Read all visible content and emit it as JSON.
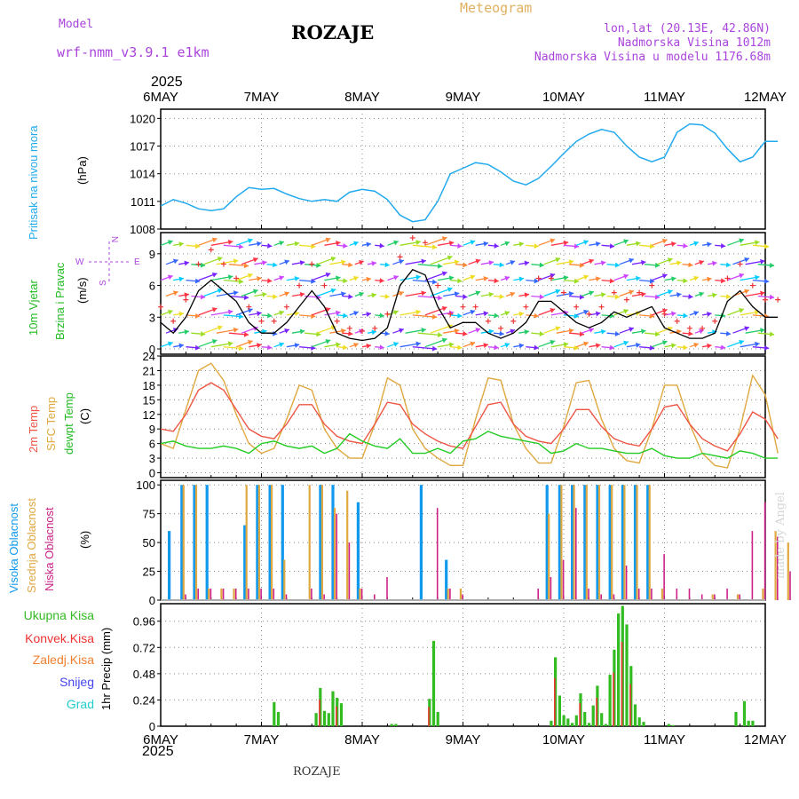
{
  "header": {
    "model_label": "Model",
    "model_name": "wrf-nmm_v3.9.1 e1km",
    "station": "ROZAJE",
    "product": "Meteogram",
    "lonlat": "lon,lat (20.13E, 42.86N)",
    "elevation": "Nadmorska Visina 1012m",
    "model_elevation": "Nadmorska Visina u modelu 1176.68m",
    "credit": "made by Angel",
    "footer_station": "ROZAJE",
    "year": "2025"
  },
  "colors": {
    "pressure": "#22aaee",
    "wind_speed": "#000000",
    "wind_gust_marks": "#ee3333",
    "temp_2m": "#ee5544",
    "temp_sfc": "#e0a840",
    "temp_dew": "#22cc22",
    "cloud_high": "#1199ee",
    "cloud_mid": "#e0a840",
    "cloud_low": "#cc2288",
    "precip_total": "#33bb22",
    "precip_conv": "#ee3333",
    "grid": "#888888"
  },
  "chart_data": [
    {
      "type": "line",
      "panel": "pressure",
      "ylabel": [
        "Pritisak na nivou mora",
        "(hPa)"
      ],
      "yticks": [
        1008,
        1011,
        1014,
        1017,
        1020
      ],
      "ylim": [
        1008,
        1021
      ],
      "x_start": "2025-05-06T00",
      "x_step_hours": 3,
      "series": [
        {
          "name": "Pritisak na nivou mora",
          "values": [
            1010.5,
            1011.2,
            1010.8,
            1010.2,
            1010,
            1010.2,
            1011.5,
            1012.5,
            1012.3,
            1012.4,
            1011.8,
            1011.3,
            1011,
            1011.2,
            1011,
            1012,
            1012.3,
            1012.1,
            1011.2,
            1009.5,
            1008.8,
            1009,
            1011,
            1014,
            1014.6,
            1015.2,
            1015,
            1014.2,
            1013.2,
            1012.8,
            1013.5,
            1014.8,
            1016.2,
            1017.5,
            1018.3,
            1018.8,
            1018.5,
            1017,
            1015.8,
            1015.3,
            1015.8,
            1018.5,
            1019.4,
            1019.3,
            1018.4,
            1016.7,
            1015.3,
            1015.8,
            1017.5,
            1017.5
          ]
        }
      ]
    },
    {
      "type": "line",
      "panel": "wind",
      "ylabel": [
        "10m Vjetar",
        "Brzina i Pravac",
        "(m/s)"
      ],
      "yticks": [
        0,
        3,
        6,
        9
      ],
      "ylim": [
        -0.5,
        11
      ],
      "x_start": "2025-05-06T00",
      "x_step_hours": 3,
      "series": [
        {
          "name": "10m Vjetar",
          "values": [
            2.5,
            1.5,
            3,
            5.5,
            6.5,
            5.5,
            4.5,
            2.5,
            1.5,
            1.5,
            2.5,
            4,
            5.5,
            4,
            1.5,
            1,
            0.8,
            1,
            2,
            6,
            7.5,
            7,
            4,
            2,
            2.5,
            2.5,
            1.5,
            1,
            1.5,
            2.5,
            4.5,
            4.5,
            3.5,
            2.5,
            2,
            2.5,
            3.5,
            3,
            3.5,
            4,
            2,
            1.5,
            1,
            1,
            1.5,
            4.5,
            5.5,
            4,
            3,
            3
          ]
        }
      ],
      "direction_legend": [
        "N",
        "E",
        "S",
        "W"
      ]
    },
    {
      "type": "line",
      "panel": "temperature",
      "ylabel": [
        "2m Temp",
        "SFC Temp",
        "dewpt Temp",
        "(C)"
      ],
      "yticks": [
        0,
        3,
        6,
        9,
        12,
        15,
        18,
        21,
        24
      ],
      "ylim": [
        -1,
        24
      ],
      "x_start": "2025-05-06T00",
      "x_step_hours": 3,
      "series": [
        {
          "name": "2m Temp",
          "values": [
            9,
            8.5,
            12,
            17,
            18.5,
            17,
            13,
            9,
            7.5,
            7,
            10,
            14,
            14,
            10,
            7.5,
            6.5,
            6,
            10,
            14.5,
            14,
            10,
            8,
            6.5,
            5.5,
            5,
            9.5,
            14,
            14.5,
            10,
            7.5,
            6.5,
            6,
            9,
            13,
            13,
            9.5,
            7,
            6,
            5.5,
            9,
            13.5,
            14,
            10,
            7,
            5.5,
            4.5,
            8,
            12.5,
            11,
            7
          ]
        },
        {
          "name": "SFC Temp",
          "values": [
            6,
            5,
            13,
            21,
            22.5,
            19,
            12,
            6,
            4,
            5,
            11,
            18,
            17,
            9,
            5,
            3,
            3,
            10,
            19.5,
            18,
            9,
            5,
            3,
            1.5,
            1.5,
            11,
            19.5,
            19,
            10,
            5,
            2,
            2,
            9.5,
            18.5,
            19,
            11,
            5,
            2.5,
            2,
            9,
            18,
            18,
            10,
            4,
            1.5,
            1,
            9,
            20,
            16,
            4
          ]
        },
        {
          "name": "dewpt Temp",
          "values": [
            6,
            6.5,
            5.5,
            5,
            5,
            5.5,
            5,
            4,
            6,
            6.5,
            5.5,
            5,
            5.5,
            4,
            5,
            8,
            6.5,
            5.5,
            5,
            7,
            4,
            4,
            5,
            4,
            6.5,
            7,
            8.5,
            7.5,
            7,
            6.5,
            6,
            4,
            4.5,
            6,
            5,
            5,
            4.5,
            4,
            4,
            5,
            3.5,
            3,
            3,
            4,
            3.5,
            3,
            4.5,
            4,
            3,
            3
          ]
        }
      ]
    },
    {
      "type": "bar",
      "panel": "clouds",
      "ylabel": [
        "Visoka Oblacnost",
        "Srednja Oblacnost",
        "Niska Oblacnost",
        "(%)"
      ],
      "yticks": [
        0,
        25,
        50,
        75,
        100
      ],
      "ylim": [
        0,
        104
      ],
      "x_start": "2025-05-06T00",
      "x_step_hours": 3,
      "series": [
        {
          "name": "Visoka Oblacnost",
          "values": [
            60,
            100,
            100,
            100,
            0,
            0,
            65,
            100,
            100,
            100,
            0,
            0,
            100,
            100,
            0,
            85,
            0,
            0,
            0,
            0,
            100,
            0,
            35,
            0,
            0,
            0,
            0,
            0,
            0,
            0,
            100,
            100,
            100,
            100,
            100,
            100,
            100,
            100,
            100,
            0,
            0,
            0,
            0,
            0,
            0,
            0,
            0,
            0,
            0,
            0
          ]
        },
        {
          "name": "Srednja Oblacnost",
          "values": [
            0,
            100,
            100,
            10,
            10,
            10,
            100,
            100,
            100,
            35,
            0,
            100,
            100,
            80,
            95,
            10,
            0,
            0,
            0,
            0,
            0,
            0,
            10,
            10,
            0,
            0,
            0,
            0,
            0,
            0,
            75,
            100,
            100,
            100,
            100,
            100,
            100,
            100,
            100,
            10,
            0,
            0,
            0,
            5,
            0,
            5,
            0,
            10,
            60,
            50
          ]
        },
        {
          "name": "Niska Oblacnost",
          "values": [
            0,
            5,
            10,
            10,
            10,
            10,
            10,
            10,
            10,
            5,
            0,
            10,
            5,
            75,
            50,
            10,
            5,
            20,
            0,
            0,
            0,
            80,
            10,
            5,
            0,
            0,
            0,
            0,
            0,
            10,
            20,
            35,
            80,
            10,
            5,
            5,
            30,
            10,
            10,
            40,
            10,
            10,
            5,
            5,
            10,
            5,
            60,
            85,
            55,
            25
          ]
        }
      ]
    },
    {
      "type": "bar",
      "panel": "precipitation",
      "ylabel": [
        "1hr Precip (mm)"
      ],
      "legend": [
        "Ukupna Kisa",
        "Konvek.Kisa",
        "Zaledj.Kisa",
        "Snijeg",
        "Grad"
      ],
      "yticks": [
        0,
        0.24,
        0.48,
        0.72,
        0.96
      ],
      "ylim": [
        0,
        1.12
      ],
      "x_start": "2025-05-06T00",
      "x_step_hours": 1,
      "sparse_points": [
        {
          "h": 27,
          "v": 0.22
        },
        {
          "h": 28,
          "v": 0.13
        },
        {
          "h": 37,
          "v": 0.12
        },
        {
          "h": 38,
          "v": 0.35
        },
        {
          "h": 39,
          "v": 0.14
        },
        {
          "h": 40,
          "v": 0.12
        },
        {
          "h": 41,
          "v": 0.32
        },
        {
          "h": 42,
          "v": 0.26
        },
        {
          "h": 43,
          "v": 0.21
        },
        {
          "h": 55,
          "v": 0.02
        },
        {
          "h": 56,
          "v": 0.02
        },
        {
          "h": 64,
          "v": 0.25
        },
        {
          "h": 65,
          "v": 0.78
        },
        {
          "h": 66,
          "v": 0.13
        },
        {
          "h": 93,
          "v": 0.05
        },
        {
          "h": 94,
          "v": 0.63
        },
        {
          "h": 95,
          "v": 0.28
        },
        {
          "h": 96,
          "v": 0.1
        },
        {
          "h": 97,
          "v": 0.07
        },
        {
          "h": 98,
          "v": 0.03
        },
        {
          "h": 99,
          "v": 0.1
        },
        {
          "h": 100,
          "v": 0.3
        },
        {
          "h": 101,
          "v": 0.13
        },
        {
          "h": 102,
          "v": 0.03
        },
        {
          "h": 103,
          "v": 0.19
        },
        {
          "h": 104,
          "v": 0.37
        },
        {
          "h": 105,
          "v": 0.12
        },
        {
          "h": 106,
          "v": 0.02
        },
        {
          "h": 107,
          "v": 0.47
        },
        {
          "h": 108,
          "v": 0.7
        },
        {
          "h": 109,
          "v": 1.03
        },
        {
          "h": 110,
          "v": 1.1
        },
        {
          "h": 111,
          "v": 0.93
        },
        {
          "h": 112,
          "v": 0.55
        },
        {
          "h": 113,
          "v": 0.2
        },
        {
          "h": 114,
          "v": 0.08
        },
        {
          "h": 115,
          "v": 0.04
        },
        {
          "h": 121,
          "v": 0.02
        },
        {
          "h": 122,
          "v": 0.01
        },
        {
          "h": 137,
          "v": 0.13
        },
        {
          "h": 139,
          "v": 0.23
        },
        {
          "h": 140,
          "v": 0.05
        },
        {
          "h": 141,
          "v": 0.05
        }
      ]
    }
  ],
  "x_axis": {
    "labels": [
      "6MAY",
      "7MAY",
      "8MAY",
      "9MAY",
      "10MAY",
      "11MAY",
      "12MAY"
    ]
  }
}
